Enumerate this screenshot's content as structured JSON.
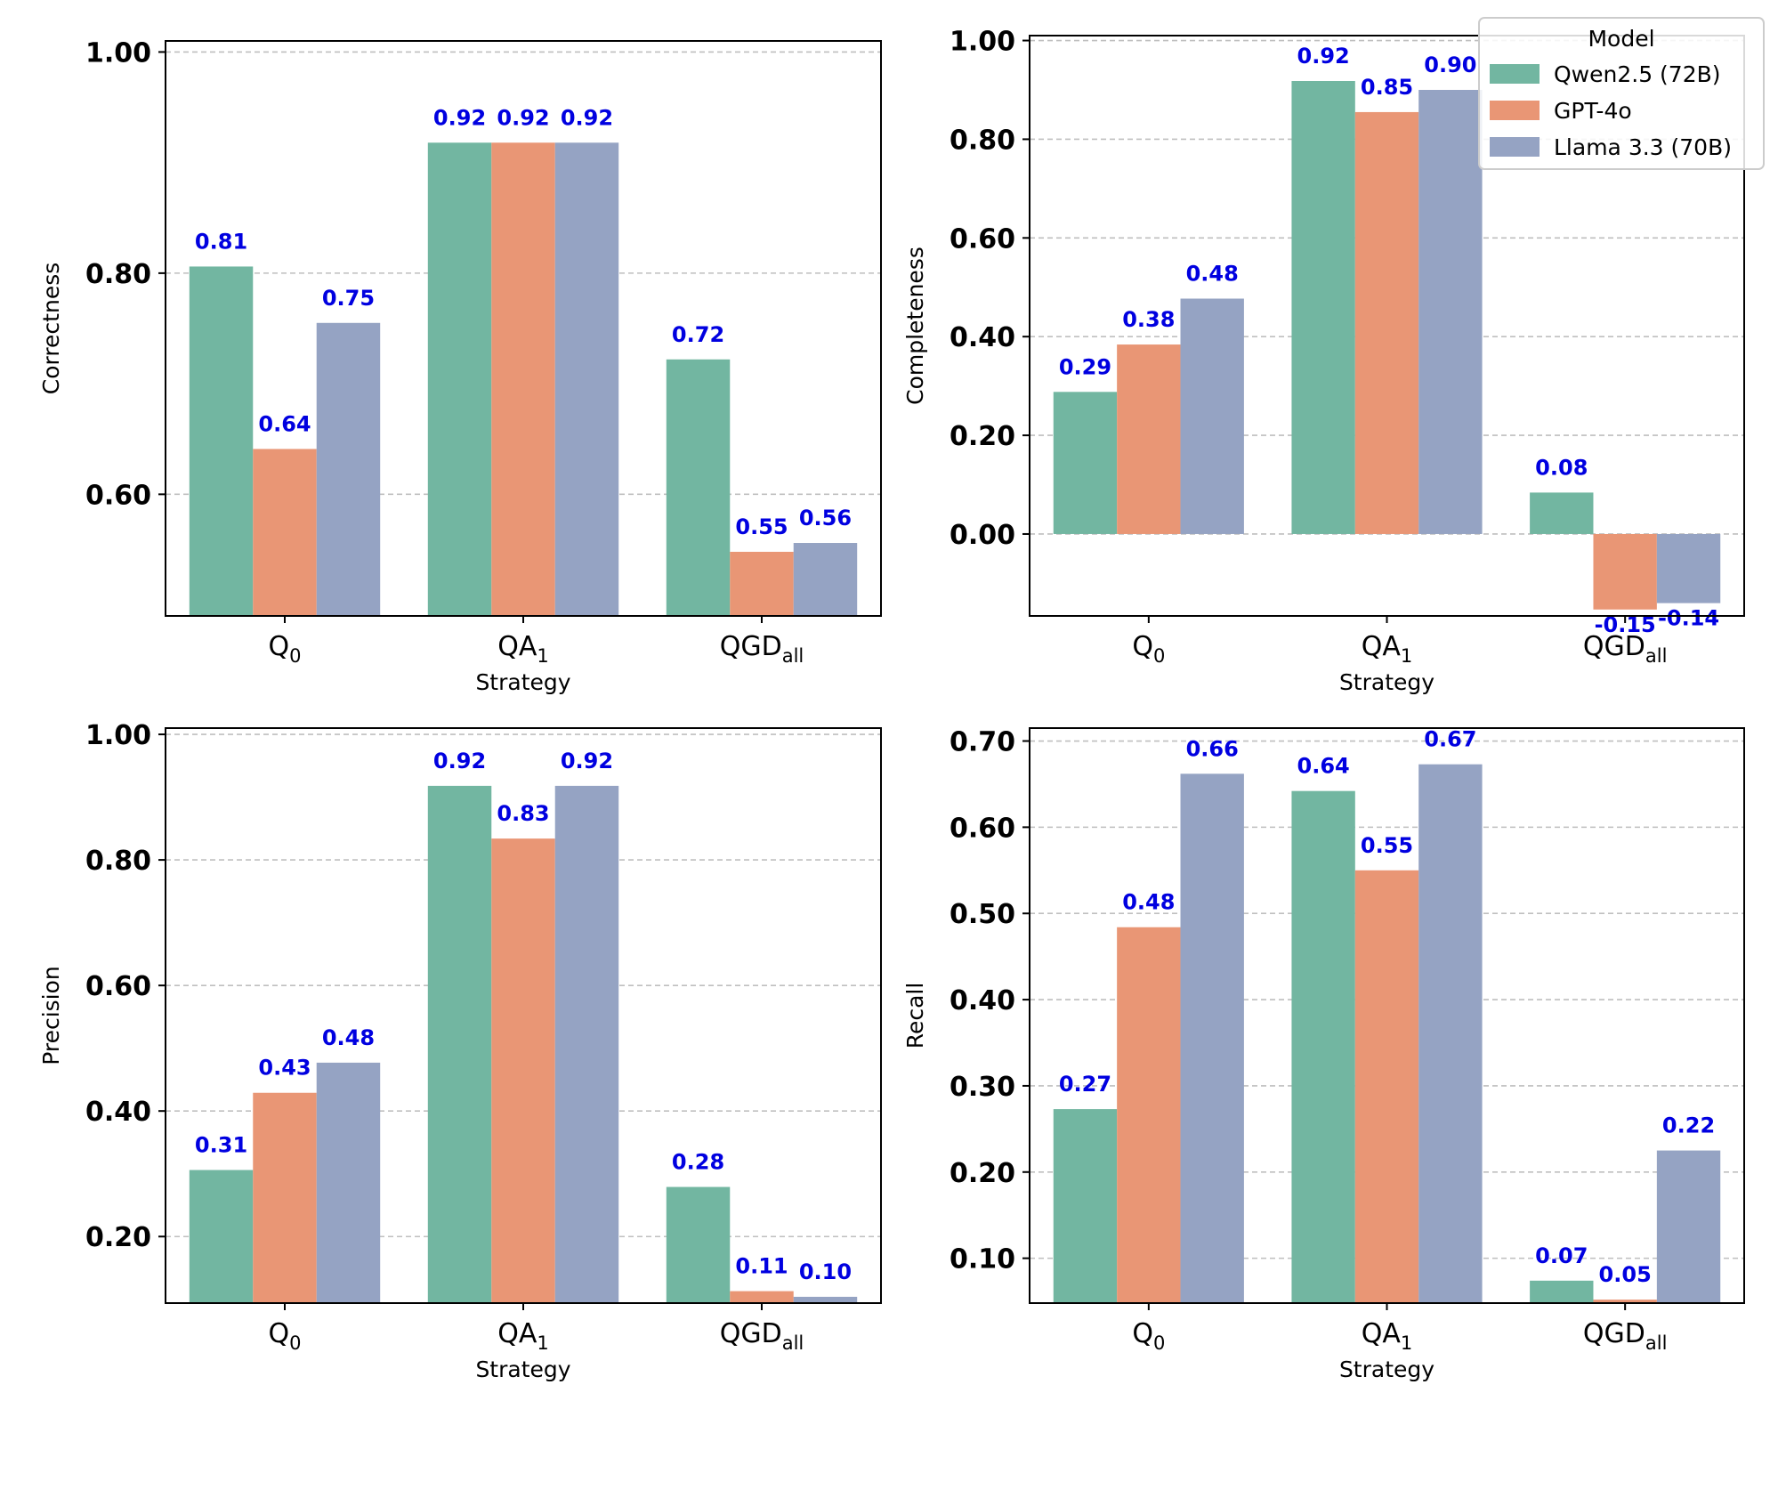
{
  "legend": {
    "title": "Model",
    "entries": [
      {
        "name": "Qwen2.5 (72B)",
        "color": "#72b6a1"
      },
      {
        "name": "GPT-4o",
        "color": "#e99675"
      },
      {
        "name": "Llama 3.3 (70B)",
        "color": "#95a3c3"
      }
    ]
  },
  "label_color": "#0000e0",
  "grid": true,
  "chart_data": [
    {
      "type": "bar",
      "xlabel": "Strategy",
      "ylabel": "Correctness",
      "categories": [
        {
          "base": "Q",
          "sub": "0"
        },
        {
          "base": "QA",
          "sub": "1"
        },
        {
          "base": "QGD",
          "sub": "all"
        }
      ],
      "ylim": [
        0.49,
        1.01
      ],
      "yticks": [
        0.6,
        0.8,
        1.0
      ],
      "ytick_labels": [
        "0.60",
        "0.80",
        "1.00"
      ],
      "series": [
        {
          "name": "Qwen2.5 (72B)",
          "values": [
            0.806,
            0.918,
            0.722
          ],
          "labels": [
            "0.81",
            "0.92",
            "0.72"
          ]
        },
        {
          "name": "GPT-4o",
          "values": [
            0.641,
            0.918,
            0.548
          ],
          "labels": [
            "0.64",
            "0.92",
            "0.55"
          ]
        },
        {
          "name": "Llama 3.3 (70B)",
          "values": [
            0.755,
            0.918,
            0.556
          ],
          "labels": [
            "0.75",
            "0.92",
            "0.56"
          ]
        }
      ]
    },
    {
      "type": "bar",
      "xlabel": "Strategy",
      "ylabel": "Completeness",
      "categories": [
        {
          "base": "Q",
          "sub": "0"
        },
        {
          "base": "QA",
          "sub": "1"
        },
        {
          "base": "QGD",
          "sub": "all"
        }
      ],
      "ylim": [
        -0.166,
        1.01
      ],
      "yticks": [
        0.0,
        0.2,
        0.4,
        0.6,
        0.8,
        1.0
      ],
      "ytick_labels": [
        "0.00",
        "0.20",
        "0.40",
        "0.60",
        "0.80",
        "1.00"
      ],
      "series": [
        {
          "name": "Qwen2.5 (72B)",
          "values": [
            0.288,
            0.918,
            0.084
          ],
          "labels": [
            "0.29",
            "0.92",
            "0.08"
          ]
        },
        {
          "name": "GPT-4o",
          "values": [
            0.384,
            0.855,
            -0.153
          ],
          "labels": [
            "0.38",
            "0.85",
            "-0.15"
          ]
        },
        {
          "name": "Llama 3.3 (70B)",
          "values": [
            0.477,
            0.9,
            -0.14
          ],
          "labels": [
            "0.48",
            "0.90",
            "-0.14"
          ]
        }
      ],
      "legend_position": "upper right"
    },
    {
      "type": "bar",
      "xlabel": "Strategy",
      "ylabel": "Precision",
      "categories": [
        {
          "base": "Q",
          "sub": "0"
        },
        {
          "base": "QA",
          "sub": "1"
        },
        {
          "base": "QGD",
          "sub": "all"
        }
      ],
      "ylim": [
        0.094,
        1.01
      ],
      "yticks": [
        0.2,
        0.4,
        0.6,
        0.8,
        1.0
      ],
      "ytick_labels": [
        "0.20",
        "0.40",
        "0.60",
        "0.80",
        "1.00"
      ],
      "series": [
        {
          "name": "Qwen2.5 (72B)",
          "values": [
            0.306,
            0.918,
            0.279
          ],
          "labels": [
            "0.31",
            "0.92",
            "0.28"
          ]
        },
        {
          "name": "GPT-4o",
          "values": [
            0.429,
            0.834,
            0.113
          ],
          "labels": [
            "0.43",
            "0.83",
            "0.11"
          ]
        },
        {
          "name": "Llama 3.3 (70B)",
          "values": [
            0.477,
            0.918,
            0.104
          ],
          "labels": [
            "0.48",
            "0.92",
            "0.10"
          ]
        }
      ]
    },
    {
      "type": "bar",
      "xlabel": "Strategy",
      "ylabel": "Recall",
      "categories": [
        {
          "base": "Q",
          "sub": "0"
        },
        {
          "base": "QA",
          "sub": "1"
        },
        {
          "base": "QGD",
          "sub": "all"
        }
      ],
      "ylim": [
        0.048,
        0.715
      ],
      "yticks": [
        0.1,
        0.2,
        0.3,
        0.4,
        0.5,
        0.6,
        0.7
      ],
      "ytick_labels": [
        "0.10",
        "0.20",
        "0.30",
        "0.40",
        "0.50",
        "0.60",
        "0.70"
      ],
      "series": [
        {
          "name": "Qwen2.5 (72B)",
          "values": [
            0.273,
            0.642,
            0.074
          ],
          "labels": [
            "0.27",
            "0.64",
            "0.07"
          ]
        },
        {
          "name": "GPT-4o",
          "values": [
            0.484,
            0.55,
            0.052
          ],
          "labels": [
            "0.48",
            "0.55",
            "0.05"
          ]
        },
        {
          "name": "Llama 3.3 (70B)",
          "values": [
            0.662,
            0.673,
            0.225
          ],
          "labels": [
            "0.66",
            "0.67",
            "0.22"
          ]
        }
      ]
    }
  ]
}
